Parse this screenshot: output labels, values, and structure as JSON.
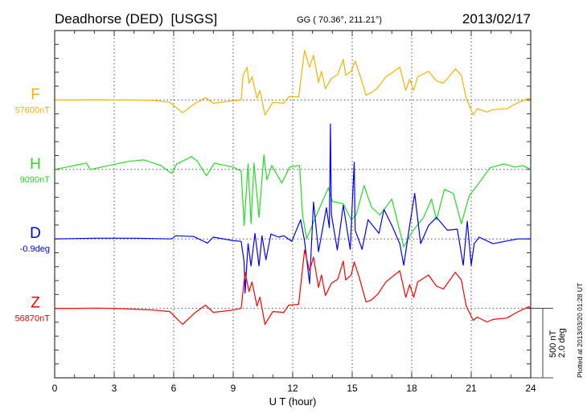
{
  "chart_data": {
    "type": "line",
    "title": "Deadhorse (DED)  [USGS]",
    "subtitle": "GG ( 70.36°, 211.21°)",
    "date": "2013/02/17",
    "xlabel": "U T (hour)",
    "xlim": [
      0,
      24
    ],
    "xticks": [
      "0",
      "3",
      "6",
      "9",
      "12",
      "15",
      "18",
      "21",
      "24"
    ],
    "grid": true,
    "scale_bar": {
      "nT_label": "500 nT",
      "deg_label": "2.0 deg",
      "nT": 500,
      "deg": 2.0
    },
    "plotted_at": "Plotted at 2013/03/20 01:28 UT",
    "series": [
      {
        "name": "F",
        "baseline_label": "57600nT",
        "unit": "nT",
        "color": "#f5b400",
        "x": [
          0,
          1,
          2,
          3,
          4,
          5,
          5.8,
          6.45,
          7.1,
          7.6,
          8,
          9,
          9.4,
          9.5,
          9.7,
          9.8,
          9.95,
          10.2,
          10.35,
          10.6,
          11.0,
          11.55,
          11.8,
          12.3,
          12.6,
          12.85,
          13.05,
          13.3,
          13.45,
          13.65,
          13.95,
          14.27,
          14.55,
          14.67,
          14.95,
          15.15,
          15.35,
          15.7,
          15.97,
          16.3,
          16.7,
          17.0,
          17.4,
          17.7,
          17.9,
          18.1,
          18.3,
          18.85,
          19.25,
          19.6,
          20.2,
          20.5,
          20.75,
          21.1,
          21.3,
          21.8,
          22.1,
          22.8,
          23.3,
          23.9,
          24
        ],
        "y": [
          0,
          0,
          2,
          0,
          0,
          -3,
          -17,
          -92,
          -23,
          17,
          -23,
          -6,
          0,
          178,
          236,
          121,
          167,
          12,
          69,
          -109,
          -17,
          -23,
          23,
          23,
          357,
          236,
          322,
          127,
          207,
          81,
          155,
          184,
          293,
          178,
          207,
          282,
          196,
          35,
          52,
          92,
          167,
          196,
          236,
          69,
          150,
          69,
          167,
          207,
          138,
          121,
          224,
          178,
          12,
          -109,
          -63,
          -86,
          -69,
          -63,
          -23,
          12,
          0
        ]
      },
      {
        "name": "H",
        "baseline_label": "9090nT",
        "unit": "nT",
        "color": "#22dd22",
        "x": [
          0,
          1.6,
          1.8,
          3.7,
          4.5,
          5.35,
          5.9,
          6.15,
          6.9,
          7.2,
          7.65,
          8.05,
          9.0,
          9.4,
          9.55,
          9.75,
          9.9,
          10.05,
          10.3,
          10.55,
          10.7,
          10.95,
          11.45,
          11.85,
          12.35,
          12.5,
          12.7,
          13.2,
          13.8,
          14.0,
          14.55,
          14.95,
          15.2,
          15.6,
          15.97,
          16.4,
          17.0,
          17.6,
          18.05,
          18.6,
          19.0,
          19.25,
          19.65,
          20.1,
          20.5,
          20.9,
          21.3,
          21.95,
          22.65,
          23.2,
          23.6,
          24
        ],
        "y": [
          0,
          46,
          0,
          58,
          69,
          29,
          -29,
          40,
          92,
          58,
          -46,
          46,
          17,
          -12,
          -403,
          40,
          -391,
          46,
          -345,
          104,
          -75,
          29,
          -98,
          17,
          29,
          -328,
          -500,
          -328,
          -132,
          -230,
          -247,
          -362,
          -328,
          -115,
          -270,
          -328,
          -213,
          -558,
          -443,
          -345,
          -213,
          -362,
          -144,
          -173,
          -391,
          -190,
          -115,
          12,
          40,
          17,
          29,
          0
        ]
      },
      {
        "name": "D",
        "baseline_label": "-0.9deg",
        "unit": "deg",
        "color": "#0000ff",
        "x": [
          0,
          2,
          4,
          5.9,
          6.1,
          7.0,
          7.7,
          8,
          9,
          9.4,
          9.55,
          9.6,
          9.75,
          9.9,
          10.1,
          10.3,
          10.45,
          10.65,
          10.9,
          11.3,
          11.55,
          11.95,
          12.4,
          12.6,
          12.85,
          13.05,
          13.3,
          13.7,
          13.85,
          13.9,
          13.95,
          14.25,
          14.55,
          14.9,
          15.1,
          15.15,
          15.5,
          15.8,
          16.35,
          16.6,
          17.0,
          17.4,
          17.6,
          17.9,
          18.15,
          18.45,
          18.85,
          19.25,
          19.8,
          20.3,
          20.6,
          20.8,
          21.0,
          21.15,
          21.4,
          22.1,
          22.7,
          23.35,
          24
        ],
        "y": [
          0,
          0.02,
          0.02,
          0,
          0.09,
          0.07,
          -0.12,
          0.05,
          -0.05,
          -0.07,
          -0.67,
          -1.56,
          -0.14,
          -0.78,
          0.16,
          -0.78,
          0.09,
          -0.6,
          0.14,
          0.05,
          0.09,
          -0.07,
          0.55,
          -0.07,
          -1.29,
          1.06,
          -0.37,
          0.9,
          0.32,
          3.31,
          0.71,
          -0.32,
          0.97,
          -0.3,
          2.21,
          0.25,
          -0.3,
          0.55,
          0.16,
          0.85,
          0.39,
          -0.14,
          -0.76,
          0.39,
          1.31,
          -0.14,
          0.39,
          0.62,
          0.25,
          0.28,
          -0.76,
          0.51,
          -0.76,
          -0.14,
          0.05,
          -0.14,
          -0.07,
          0,
          0
        ]
      },
      {
        "name": "Z",
        "baseline_label": "56870nT",
        "unit": "nT",
        "color": "#ff0000",
        "x": [
          0,
          1,
          2,
          3,
          4,
          5,
          5.8,
          6.45,
          7.1,
          7.6,
          8,
          9,
          9.4,
          9.6,
          9.8,
          9.95,
          10.2,
          10.35,
          10.6,
          11.0,
          11.55,
          11.8,
          12.3,
          12.6,
          12.85,
          13.05,
          13.3,
          13.45,
          13.65,
          13.95,
          14.27,
          14.55,
          14.67,
          14.95,
          15.1,
          15.35,
          15.7,
          15.97,
          16.3,
          16.7,
          17.0,
          17.4,
          17.7,
          17.9,
          18.1,
          18.3,
          18.85,
          19.25,
          19.6,
          20.2,
          20.5,
          20.75,
          21.1,
          21.3,
          21.8,
          22.1,
          22.8,
          23.3,
          23.9,
          24
        ],
        "y": [
          0,
          0,
          2,
          0,
          -6,
          -12,
          -23,
          -115,
          -29,
          23,
          -29,
          -12,
          0,
          259,
          121,
          190,
          17,
          81,
          -115,
          -23,
          -29,
          23,
          29,
          420,
          270,
          370,
          150,
          240,
          92,
          180,
          210,
          340,
          205,
          240,
          334,
          225,
          46,
          60,
          104,
          190,
          225,
          270,
          80,
          170,
          80,
          190,
          240,
          160,
          140,
          259,
          205,
          17,
          -86,
          -63,
          -98,
          -80,
          -70,
          -29,
          12,
          0
        ]
      }
    ]
  }
}
